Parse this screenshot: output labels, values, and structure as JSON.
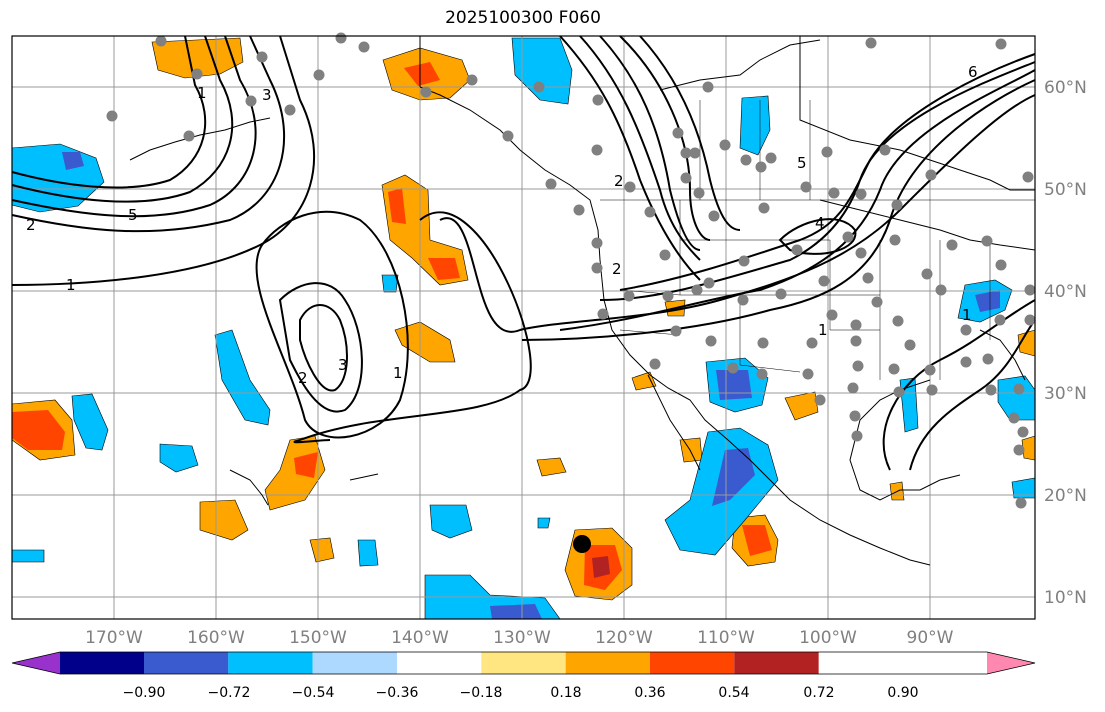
{
  "title": "2025100300 F060",
  "lon_labels": [
    "170°W",
    "160°W",
    "150°W",
    "140°W",
    "130°W",
    "120°W",
    "110°W",
    "100°W",
    "90°W"
  ],
  "lat_labels": [
    "60°N",
    "50°N",
    "40°N",
    "30°N",
    "20°N",
    "10°N"
  ],
  "colorbar": {
    "tick_labels": [
      "−0.90",
      "−0.72",
      "−0.54",
      "−0.36",
      "−0.18",
      "0.18",
      "0.36",
      "0.54",
      "0.72",
      "0.90"
    ],
    "colors": [
      "#9932cc",
      "#00008b",
      "#3a5bd0",
      "#00bfff",
      "#add8ff",
      "#ffffff",
      "#ffe680",
      "#ffa500",
      "#ff4500",
      "#b22222",
      "#ff88b0"
    ]
  },
  "contour_labels": [
    "1",
    "2",
    "3",
    "5",
    "1",
    "2",
    "3",
    "1",
    "2",
    "4",
    "1",
    "6",
    "1",
    "2",
    "5"
  ],
  "marker": {
    "lon": -125.3,
    "lat": 15.2
  }
}
